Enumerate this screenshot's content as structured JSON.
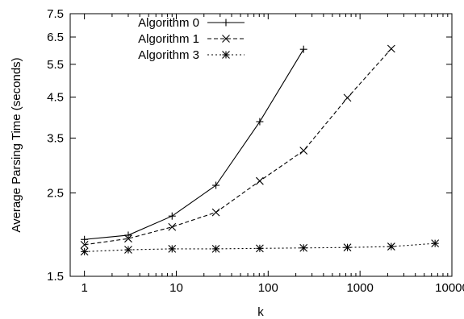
{
  "chart_data": {
    "type": "line",
    "title": "",
    "xlabel": "k",
    "ylabel": "Average Parsing Time (seconds)",
    "xscale": "log",
    "yscale": "log",
    "xlim": [
      0.7,
      10000
    ],
    "ylim": [
      1.5,
      7.5
    ],
    "x_ticks": [
      {
        "value": 1,
        "label": "1"
      },
      {
        "value": 10,
        "label": "10"
      },
      {
        "value": 100,
        "label": "100"
      },
      {
        "value": 1000,
        "label": "1000"
      },
      {
        "value": 10000,
        "label": "10000"
      }
    ],
    "y_ticks": [
      {
        "value": 1.5,
        "label": "1.5"
      },
      {
        "value": 2.5,
        "label": "2.5"
      },
      {
        "value": 3.5,
        "label": "3.5"
      },
      {
        "value": 4.5,
        "label": "4.5"
      },
      {
        "value": 5.5,
        "label": "5.5"
      },
      {
        "value": 6.5,
        "label": "6.5"
      },
      {
        "value": 7.5,
        "label": "7.5"
      }
    ],
    "grid": false,
    "legend_position": "top-left",
    "series": [
      {
        "name": "Algorithm 0",
        "marker": "plus",
        "dash": "solid",
        "x": [
          1,
          3,
          9,
          27,
          81,
          243
        ],
        "y": [
          1.88,
          1.93,
          2.17,
          2.62,
          3.87,
          6.03
        ]
      },
      {
        "name": "Algorithm 1",
        "marker": "cross",
        "dash": "dashed",
        "x": [
          1,
          3,
          9,
          27,
          81,
          243,
          729,
          2187
        ],
        "y": [
          1.82,
          1.89,
          2.03,
          2.22,
          2.69,
          3.24,
          4.48,
          6.05
        ]
      },
      {
        "name": "Algorithm 3",
        "marker": "star",
        "dash": "dotted",
        "x": [
          1,
          3,
          9,
          27,
          81,
          243,
          729,
          2187,
          6561
        ],
        "y": [
          1.745,
          1.765,
          1.775,
          1.775,
          1.78,
          1.785,
          1.79,
          1.8,
          1.835
        ]
      }
    ]
  }
}
